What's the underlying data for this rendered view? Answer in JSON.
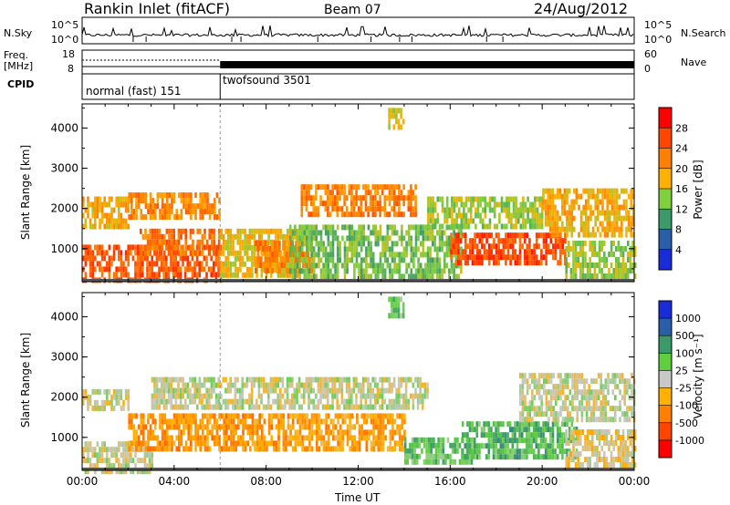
{
  "header": {
    "station": "Rankin Inlet (fitACF)",
    "beam": "Beam 07",
    "date": "24/Aug/2012"
  },
  "top_panels": {
    "nsky_label": "N.Sky",
    "nsearch_label": "N.Search",
    "count_ticks": [
      "10^5",
      "10^0"
    ],
    "freq_label": "Freq.",
    "freq_unit": "[MHz]",
    "freq_ticks": [
      "18",
      "8"
    ],
    "nave_label": "Nave",
    "nave_ticks": [
      "60",
      "0"
    ],
    "cpid_label": "CPID",
    "cpid_modes": [
      "normal (fast) 151",
      "twofsound 3501"
    ],
    "cpid_switch_hour": 6
  },
  "axes": {
    "x_label": "Time UT",
    "y_label": "Slant Range [km]"
  },
  "chart_data": [
    {
      "type": "heatmap",
      "title": "",
      "xlabel": "Time UT",
      "ylabel": "Slant Range [km]",
      "colorbar_label": "Power [dB]",
      "x_ticks": [
        "00:00",
        "04:00",
        "08:00",
        "12:00",
        "16:00",
        "20:00",
        "00:00"
      ],
      "xlim_hours": [
        0,
        24
      ],
      "y_ticks": [
        1000,
        2000,
        3000,
        4000
      ],
      "ylim": [
        180,
        4600
      ],
      "colorbar_ticks": [
        "28",
        "24",
        "20",
        "16",
        "12",
        "8",
        "4"
      ],
      "colorbar_colors": [
        "#ff0000",
        "#ff4500",
        "#ff8000",
        "#ffb000",
        "#7fcf3f",
        "#3c9a6a",
        "#2a5fa8",
        "#1a2cd8"
      ],
      "regions": [
        {
          "t0": 0.0,
          "t1": 6.0,
          "r0": 180,
          "r1": 1100,
          "level": 0.82
        },
        {
          "t0": 2.5,
          "t1": 6.0,
          "r0": 900,
          "r1": 1500,
          "level": 0.75
        },
        {
          "t0": 0.0,
          "t1": 2.0,
          "r0": 1600,
          "r1": 2300,
          "level": 0.6
        },
        {
          "t0": 2.0,
          "t1": 6.0,
          "r0": 1800,
          "r1": 2400,
          "level": 0.7
        },
        {
          "t0": 6.0,
          "t1": 9.5,
          "r0": 400,
          "r1": 1500,
          "level": 0.55
        },
        {
          "t0": 7.5,
          "t1": 10.0,
          "r0": 500,
          "r1": 1200,
          "level": 0.72
        },
        {
          "t0": 9.5,
          "t1": 14.5,
          "r0": 1800,
          "r1": 2600,
          "level": 0.72
        },
        {
          "t0": 9.0,
          "t1": 16.5,
          "r0": 300,
          "r1": 1600,
          "level": 0.4
        },
        {
          "t0": 16.0,
          "t1": 21.0,
          "r0": 600,
          "r1": 1400,
          "level": 0.85
        },
        {
          "t0": 15.0,
          "t1": 20.0,
          "r0": 1500,
          "r1": 2300,
          "level": 0.45
        },
        {
          "t0": 20.0,
          "t1": 24.0,
          "r0": 1300,
          "r1": 2500,
          "level": 0.6
        },
        {
          "t0": 21.0,
          "t1": 24.0,
          "r0": 300,
          "r1": 1200,
          "level": 0.45
        },
        {
          "t0": 13.3,
          "t1": 14.0,
          "r0": 4000,
          "r1": 4500,
          "level": 0.5
        }
      ]
    },
    {
      "type": "heatmap",
      "title": "",
      "xlabel": "Time UT",
      "ylabel": "Slant Range [km]",
      "colorbar_label": "Velocity [m s⁻¹]",
      "x_ticks": [
        "00:00",
        "04:00",
        "08:00",
        "12:00",
        "16:00",
        "20:00",
        "00:00"
      ],
      "xlim_hours": [
        0,
        24
      ],
      "y_ticks": [
        1000,
        2000,
        3000,
        4000
      ],
      "ylim": [
        180,
        4600
      ],
      "colorbar_ticks": [
        "1000",
        "500",
        "100",
        "25",
        "-25",
        "-100",
        "-500",
        "-1000"
      ],
      "colorbar_colors": [
        "#1a2cd8",
        "#2a5fa8",
        "#3c9a6a",
        "#5fcf3f",
        "#c8c8c8",
        "#ffb000",
        "#ff8000",
        "#ff4500",
        "#ff0000"
      ],
      "regions": [
        {
          "t0": 0.0,
          "t1": 3.0,
          "r0": 200,
          "r1": 900,
          "level": 0.5
        },
        {
          "t0": 2.0,
          "t1": 8.5,
          "r0": 700,
          "r1": 1600,
          "level": 0.3
        },
        {
          "t0": 0.0,
          "t1": 2.0,
          "r0": 1700,
          "r1": 2200,
          "level": 0.48
        },
        {
          "t0": 3.0,
          "t1": 15.0,
          "r0": 1800,
          "r1": 2500,
          "level": 0.5
        },
        {
          "t0": 8.5,
          "t1": 14.0,
          "r0": 700,
          "r1": 1600,
          "level": 0.33
        },
        {
          "t0": 14.0,
          "t1": 17.0,
          "r0": 400,
          "r1": 1000,
          "level": 0.65
        },
        {
          "t0": 16.5,
          "t1": 21.5,
          "r0": 500,
          "r1": 1400,
          "level": 0.68
        },
        {
          "t0": 19.0,
          "t1": 24.0,
          "r0": 1500,
          "r1": 2600,
          "level": 0.5
        },
        {
          "t0": 21.0,
          "t1": 24.0,
          "r0": 300,
          "r1": 1200,
          "level": 0.45
        },
        {
          "t0": 13.3,
          "t1": 14.0,
          "r0": 4000,
          "r1": 4500,
          "level": 0.62
        }
      ]
    }
  ]
}
